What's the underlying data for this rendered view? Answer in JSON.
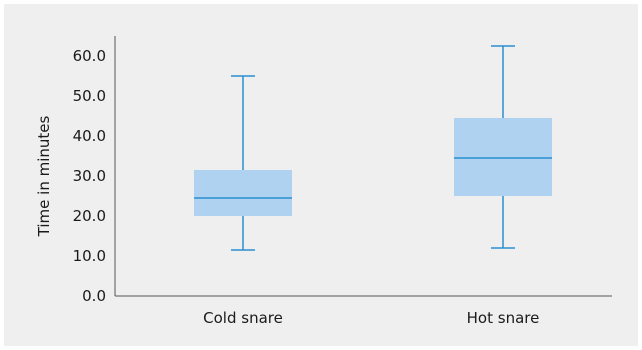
{
  "chart_data": {
    "type": "boxplot",
    "title": "",
    "xlabel": "",
    "ylabel": "Time in minutes",
    "ylim": [
      0,
      65
    ],
    "yticks": [
      "0.0",
      "10.0",
      "20.0",
      "30.0",
      "40.0",
      "50.0",
      "60.0"
    ],
    "categories": [
      "Cold snare",
      "Hot snare"
    ],
    "boxes": [
      {
        "category": "Cold snare",
        "min": 11.5,
        "q1": 20.0,
        "median": 24.5,
        "q3": 31.5,
        "max": 55.0
      },
      {
        "category": "Hot snare",
        "min": 12.0,
        "q1": 25.0,
        "median": 34.5,
        "q3": 44.5,
        "max": 62.5
      }
    ],
    "grid": false,
    "colors": {
      "box_fill": "#aed2f0",
      "line": "#2a8fd0",
      "axis": "#555555",
      "background": "#efefef"
    }
  }
}
